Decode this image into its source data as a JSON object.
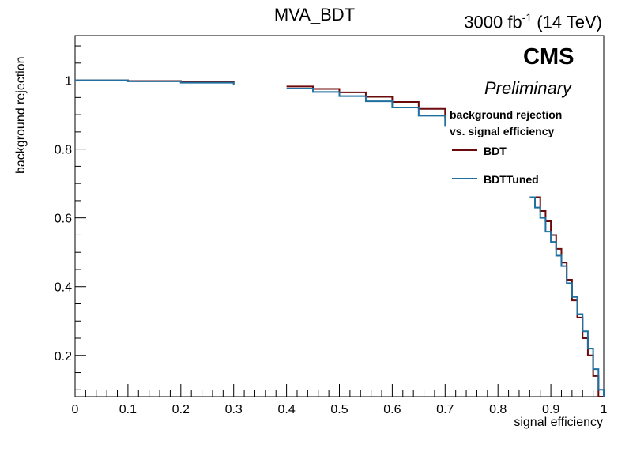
{
  "title": "MVA_BDT",
  "lumi": {
    "value": "3000 fb",
    "exponent": "-1",
    "energy": "(14 TeV)"
  },
  "cms_label": "CMS",
  "cms_sublabel": "Preliminary",
  "legend": {
    "header_line1": "background rejection",
    "header_line2": "vs. signal efficiency",
    "entries": [
      "BDT",
      "BDTTuned"
    ]
  },
  "chart_data": {
    "type": "line",
    "title": "MVA_BDT",
    "xlabel": "signal efficiency",
    "ylabel": "background rejection",
    "xlim": [
      0,
      1
    ],
    "ylim": [
      0.08,
      1.13
    ],
    "x_ticks": [
      "0",
      "0.1",
      "0.2",
      "0.3",
      "0.4",
      "0.5",
      "0.6",
      "0.7",
      "0.8",
      "0.9",
      "1"
    ],
    "y_ticks": [
      "0.2",
      "0.4",
      "0.6",
      "0.8",
      "1"
    ],
    "grid": false,
    "legend_position": "top-right",
    "series": [
      {
        "name": "BDT",
        "color": "#6b0a0a",
        "x": [
          0.0,
          0.1,
          0.2,
          0.3,
          0.4,
          0.45,
          0.5,
          0.55,
          0.6,
          0.65,
          0.7,
          0.87,
          0.88,
          0.89,
          0.9,
          0.91,
          0.92,
          0.93,
          0.94,
          0.95,
          0.96,
          0.97,
          0.98,
          0.99,
          1.0
        ],
        "values": [
          1.0,
          0.998,
          0.995,
          0.99,
          0.982,
          0.975,
          0.965,
          0.952,
          0.937,
          0.917,
          0.89,
          0.66,
          0.62,
          0.59,
          0.55,
          0.51,
          0.47,
          0.42,
          0.36,
          0.31,
          0.25,
          0.2,
          0.14,
          0.08,
          0.08
        ]
      },
      {
        "name": "BDTTuned",
        "color": "#1f6f9f",
        "x": [
          0.0,
          0.1,
          0.2,
          0.3,
          0.4,
          0.45,
          0.5,
          0.55,
          0.6,
          0.65,
          0.7,
          0.86,
          0.87,
          0.88,
          0.89,
          0.9,
          0.91,
          0.92,
          0.93,
          0.94,
          0.95,
          0.96,
          0.97,
          0.98,
          0.99,
          1.0
        ],
        "values": [
          1.0,
          0.997,
          0.993,
          0.987,
          0.976,
          0.966,
          0.954,
          0.939,
          0.921,
          0.897,
          0.865,
          0.66,
          0.63,
          0.6,
          0.56,
          0.53,
          0.49,
          0.46,
          0.41,
          0.37,
          0.32,
          0.27,
          0.22,
          0.16,
          0.1,
          0.08
        ]
      }
    ]
  }
}
